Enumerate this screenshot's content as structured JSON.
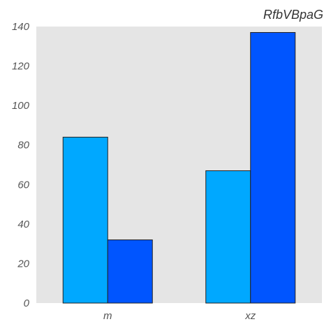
{
  "chart_data": {
    "type": "bar",
    "title": "RfbVBpaG",
    "xlabel": "",
    "ylabel": "",
    "categories": [
      "m",
      "xz"
    ],
    "series": [
      {
        "values": [
          84,
          67
        ],
        "color": "#00a8ff"
      },
      {
        "values": [
          32,
          137
        ],
        "color": "#0055ff"
      }
    ],
    "ylim": [
      0,
      140
    ],
    "yticks": [
      0,
      20,
      40,
      60,
      80,
      100,
      120,
      140
    ],
    "grid": false,
    "legend": "none",
    "plot_background": "#e5e5e5",
    "bar_edge_color": "#222222"
  }
}
